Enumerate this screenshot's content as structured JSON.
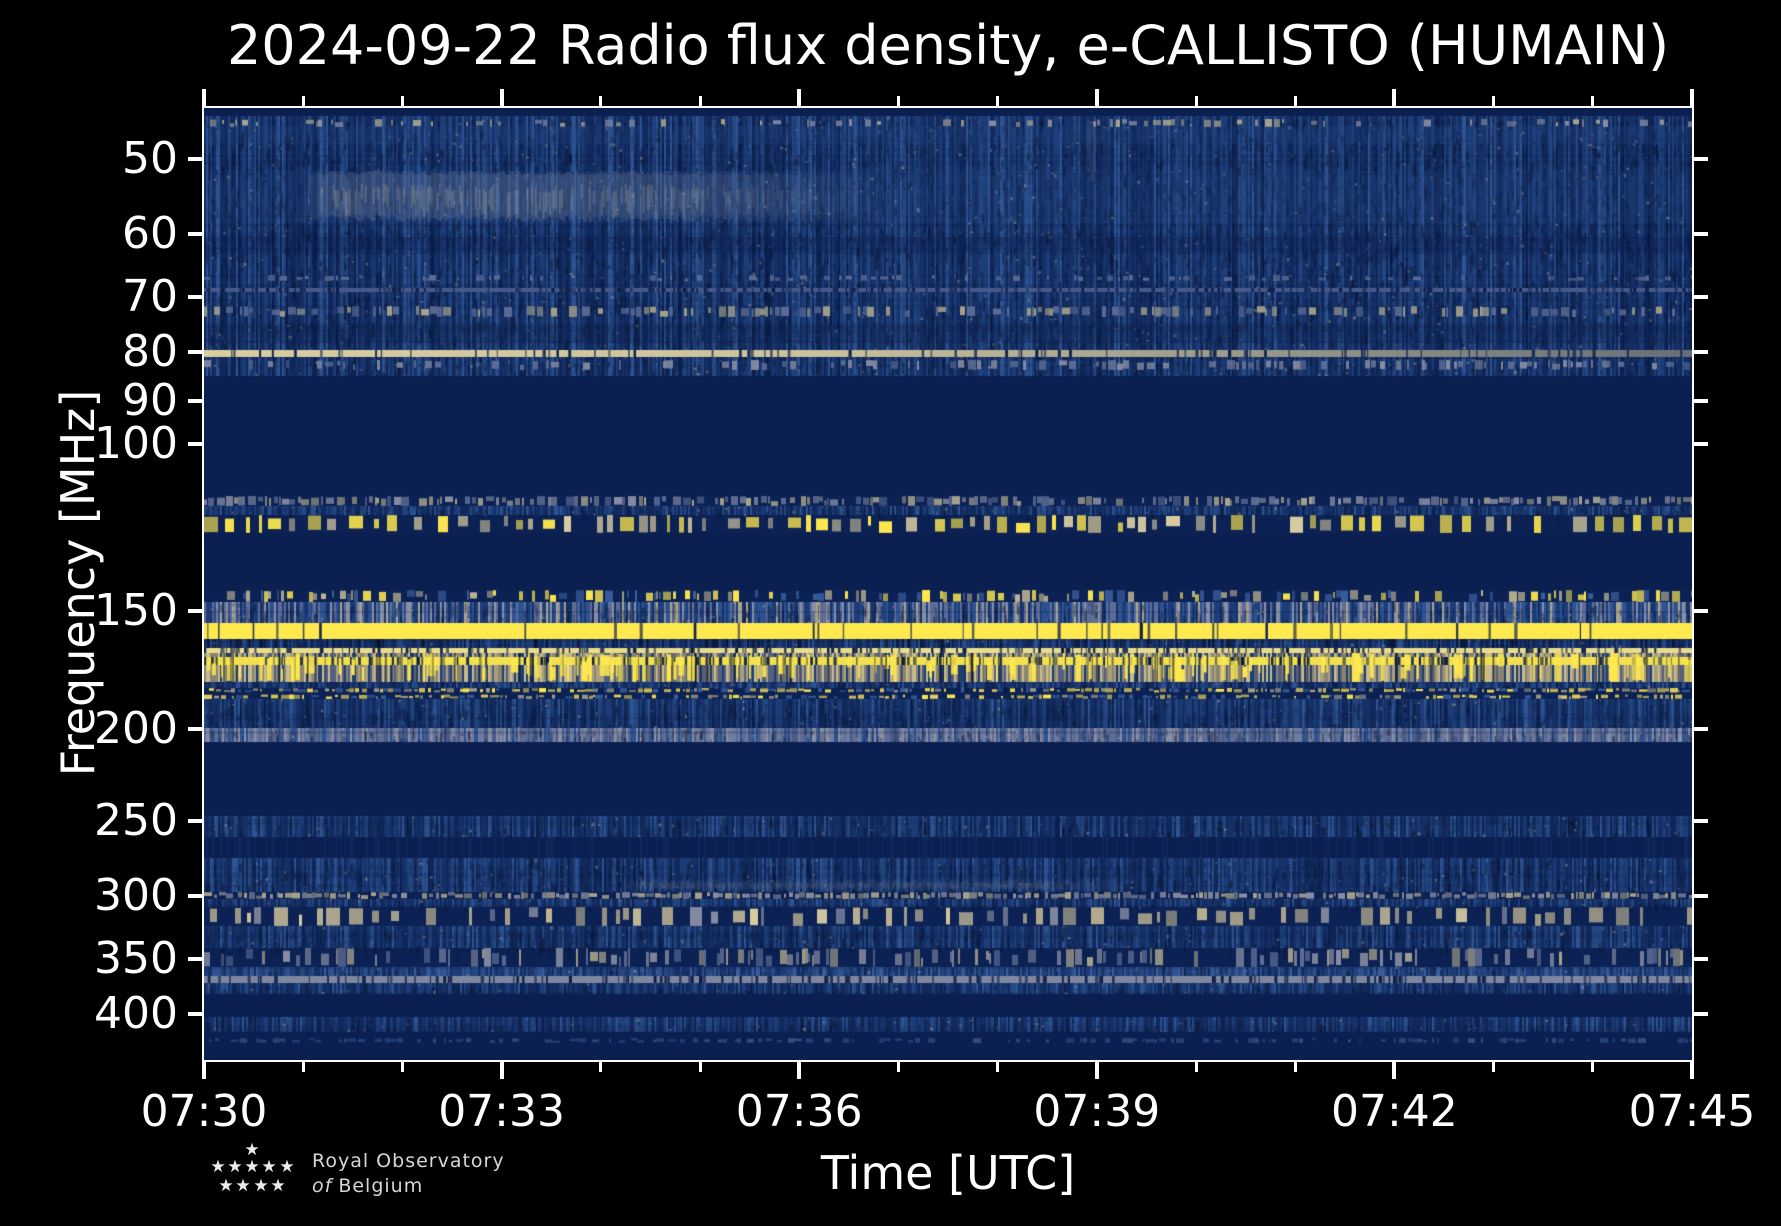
{
  "title": "2024-09-22 Radio flux density, e-CALLISTO (HUMAIN)",
  "xlabel": "Time [UTC]",
  "ylabel": "Frequency [MHz]",
  "logo": {
    "line1": "Royal Observatory",
    "line2_italic": "of",
    "line2_rest": "Belgium"
  },
  "chart_data": {
    "type": "heatmap",
    "subtype": "radio-spectrogram",
    "title": "2024-09-22 Radio flux density, e-CALLISTO (HUMAIN)",
    "xlabel": "Time [UTC]",
    "ylabel": "Frequency [MHz]",
    "seed": 20240922,
    "x_axis": {
      "start_label": "07:30",
      "end_label": "07:45",
      "duration_min": 15,
      "major_tick_min": 3,
      "minor_tick_min": 1,
      "tick_labels": [
        "07:30",
        "07:33",
        "07:36",
        "07:39",
        "07:42",
        "07:45"
      ]
    },
    "y_axis": {
      "scale": "log",
      "inverted": true,
      "min_mhz": 44.2,
      "max_mhz": 447,
      "tick_labels_mhz": [
        "50",
        "60",
        "70",
        "80",
        "90",
        "100",
        "150",
        "200",
        "250",
        "300",
        "350",
        "400"
      ]
    },
    "legend": "none",
    "grid": "off",
    "palette": {
      "yellow": "#ffe94f",
      "gold": "#f0d45c",
      "cream": "#d9cda2",
      "tan": "#c0b693",
      "paletan": "#a9a48c",
      "gray": "#8a8fa4",
      "grayblue": "#5e6d96",
      "lightblue": "#3a5d9d",
      "navy": "#0c2254",
      "navyDark": "#0b2051"
    },
    "noise_palettes": {
      "blue": [
        [
          "#11295b",
          0.28
        ],
        [
          "#163168",
          0.26
        ],
        [
          "#1d3d79",
          0.22
        ],
        [
          "#254880",
          0.13
        ],
        [
          "#2d5392",
          0.08
        ],
        [
          "#0d2150",
          0.03
        ]
      ],
      "bluelight": [
        [
          "#163168",
          0.2
        ],
        [
          "#1d3d79",
          0.3
        ],
        [
          "#254880",
          0.25
        ],
        [
          "#2d5392",
          0.15
        ],
        [
          "#3a5d9d",
          0.1
        ]
      ],
      "mixed": [
        [
          "#1d3d79",
          0.28
        ],
        [
          "#2d5392",
          0.2
        ],
        [
          "#5e6d96",
          0.2
        ],
        [
          "#8a8fa4",
          0.12
        ],
        [
          "#a9a48c",
          0.1
        ],
        [
          "#163168",
          0.1
        ]
      ],
      "grayband": [
        [
          "#5e6d96",
          0.28
        ],
        [
          "#6f7da1",
          0.2
        ],
        [
          "#8a8fa4",
          0.16
        ],
        [
          "#4a5b88",
          0.2
        ],
        [
          "#2d5392",
          0.16
        ]
      ],
      "streakbase": [
        [
          "#1e3e6e",
          0.18
        ],
        [
          "#565f80",
          0.18
        ],
        [
          "#8a8470",
          0.22
        ],
        [
          "#a89f7f",
          0.22
        ],
        [
          "#c7bb8e",
          0.2
        ]
      ]
    },
    "bands": [
      {
        "f0": 44.2,
        "f1": 45.1,
        "kind": "solid"
      },
      {
        "f0": 45.1,
        "f1": 84.8,
        "kind": "noise",
        "palette": "blue",
        "note": "broadband noise 45-85 MHz"
      },
      {
        "f0": 46.2,
        "f1": 48.3,
        "kind": "wash",
        "color": "#2b4e8c",
        "alpha": 0.22
      },
      {
        "f0": 45.4,
        "f1": 46.3,
        "kind": "speckle",
        "colors": [
          "gray",
          "paletan"
        ],
        "density": 0.22,
        "note": "speckle line ~46 MHz"
      },
      {
        "f0": 51.5,
        "f1": 58.5,
        "kind": "wash",
        "color": "#2b4e8c",
        "alpha": 0.16
      },
      {
        "f0": 51.8,
        "f1": 58.2,
        "kind": "smudge",
        "x0": 0.065,
        "x1": 0.3,
        "x2": 0.47,
        "alpha": 0.55,
        "note": "enhanced patch 07:31-07:34"
      },
      {
        "f0": 60.5,
        "f1": 63.0,
        "kind": "wash",
        "color": "#0a1d4a",
        "alpha": 0.28
      },
      {
        "f0": 66.3,
        "f1": 67.3,
        "kind": "speckle",
        "colors": [
          "grayblue"
        ],
        "density": 0.25
      },
      {
        "f0": 68.4,
        "f1": 69.2,
        "kind": "line",
        "color": "#46598b",
        "breaks": 0.35,
        "note": "faint RFI ~69 MHz"
      },
      {
        "f0": 71.6,
        "f1": 73.4,
        "kind": "speckle",
        "colors": [
          "paletan",
          "grayblue"
        ],
        "density": 0.4,
        "note": "RFI 72-73 MHz"
      },
      {
        "f0": 74.5,
        "f1": 78.3,
        "kind": "wash",
        "color": "#0a1d4a",
        "alpha": 0.26
      },
      {
        "f0": 79.5,
        "f1": 81.0,
        "kind": "line",
        "color": "#d9cda2",
        "breaks": 0.12,
        "fade_right": true,
        "note": "RFI line 80 MHz"
      },
      {
        "f0": 81.6,
        "f1": 83.6,
        "kind": "speckle",
        "colors": [
          "grayblue",
          "gray"
        ],
        "density": 0.3
      },
      {
        "f0": 84.8,
        "f1": 113.6,
        "kind": "solid",
        "note": "FM broadcast band blanked 85-113 MHz"
      },
      {
        "f0": 113.6,
        "f1": 116.3,
        "kind": "speckle",
        "colors": [
          "gray",
          "grayblue",
          "paletan"
        ],
        "density": 0.75,
        "note": "RFI ~114 MHz"
      },
      {
        "f0": 116.3,
        "f1": 118.8,
        "kind": "noise",
        "palette": "blue"
      },
      {
        "f0": 118.8,
        "f1": 124.3,
        "kind": "blobs",
        "colors": [
          "yellow",
          "tan",
          "cream"
        ],
        "density": 0.5,
        "note": "aeronautical band RFI 119-124 MHz"
      },
      {
        "f0": 124.3,
        "f1": 142.6,
        "kind": "solid"
      },
      {
        "f0": 142.6,
        "f1": 147.0,
        "kind": "speckle",
        "colors": [
          "yellow",
          "tan",
          "lightblue"
        ],
        "density": 0.5,
        "note": "RFI 143-147 MHz"
      },
      {
        "f0": 147.0,
        "f1": 154.7,
        "kind": "noise",
        "palette": "mixed"
      },
      {
        "f0": 154.7,
        "f1": 160.6,
        "kind": "line",
        "color": "#ffe94f",
        "breaks": 0.05,
        "note": "strong continuous carrier 155-160 MHz"
      },
      {
        "f0": 160.6,
        "f1": 164.2,
        "kind": "noise",
        "palette": "blue",
        "slits": 0.5
      },
      {
        "f0": 164.2,
        "f1": 166.2,
        "kind": "line",
        "color": "#e9dc8a",
        "breaks": 0.3
      },
      {
        "f0": 166.2,
        "f1": 178.3,
        "kind": "streaks",
        "line_f0": 167.8,
        "line_f1": 171.1,
        "note": "bursty PMR band 166-178 MHz"
      },
      {
        "f0": 178.3,
        "f1": 180.9,
        "kind": "noise",
        "palette": "blue"
      },
      {
        "f0": 180.9,
        "f1": 185.9,
        "kind": "speckle",
        "colors": [
          "yellow",
          "gold",
          "lightblue",
          "paletan"
        ],
        "density": 0.8,
        "rows": 2,
        "note": "dense RFI ~183 MHz"
      },
      {
        "f0": 185.9,
        "f1": 199.5,
        "kind": "noise",
        "palette": "blue"
      },
      {
        "f0": 199.5,
        "f1": 206.5,
        "kind": "noise",
        "palette": "grayband",
        "note": "enhanced band ~200 MHz"
      },
      {
        "f0": 206.5,
        "f1": 247.0,
        "kind": "solid"
      },
      {
        "f0": 247.0,
        "f1": 260.0,
        "kind": "noise",
        "palette": "blue",
        "note": "noise band ~250 MHz"
      },
      {
        "f0": 260.0,
        "f1": 273.4,
        "kind": "solid",
        "faint_noise": true
      },
      {
        "f0": 273.4,
        "f1": 297.5,
        "kind": "noise",
        "palette": "blue"
      },
      {
        "f0": 289.0,
        "f1": 295.5,
        "kind": "smudge",
        "x0": 0.28,
        "x1": 0.56,
        "x2": 0.64,
        "alpha": 0.3
      },
      {
        "f0": 297.5,
        "f1": 302.5,
        "kind": "speckle",
        "colors": [
          "paletan",
          "gray"
        ],
        "density": 0.85,
        "note": "RFI line ~300 MHz"
      },
      {
        "f0": 302.5,
        "f1": 308.5,
        "kind": "noise",
        "palette": "blue"
      },
      {
        "f0": 308.5,
        "f1": 322.5,
        "kind": "blobs",
        "colors": [
          "tan",
          "cream",
          "gray"
        ],
        "density": 0.38,
        "rare_yellow": true,
        "note": "RFI 310-320 MHz"
      },
      {
        "f0": 322.5,
        "f1": 340.5,
        "kind": "noise",
        "palette": "blue"
      },
      {
        "f0": 340.5,
        "f1": 356.5,
        "kind": "speckle",
        "colors": [
          "gray",
          "paletan",
          "grayblue"
        ],
        "density": 0.45,
        "note": "RFI ~350 MHz"
      },
      {
        "f0": 356.5,
        "f1": 364.5,
        "kind": "noise",
        "palette": "bluelight"
      },
      {
        "f0": 364.5,
        "f1": 370.5,
        "kind": "line",
        "color": "#7f87a0",
        "breaks": 0.25,
        "note": "faint line ~367 MHz"
      },
      {
        "f0": 370.5,
        "f1": 381.0,
        "kind": "noise",
        "palette": "blue"
      },
      {
        "f0": 381.0,
        "f1": 403.0,
        "kind": "solid"
      },
      {
        "f0": 403.0,
        "f1": 418.0,
        "kind": "noise",
        "palette": "blue",
        "note": "noise band ~410 MHz"
      },
      {
        "f0": 418.0,
        "f1": 447.0,
        "kind": "solid"
      },
      {
        "f0": 424.0,
        "f1": 429.0,
        "kind": "speckle",
        "colors": [
          "lightblue",
          "grayblue"
        ],
        "density": 0.5,
        "alpha": 0.55
      }
    ],
    "vstreaks": [
      {
        "x": 0.596,
        "f0": 45.3,
        "f1": 52.5,
        "alpha": 0.2
      }
    ]
  }
}
